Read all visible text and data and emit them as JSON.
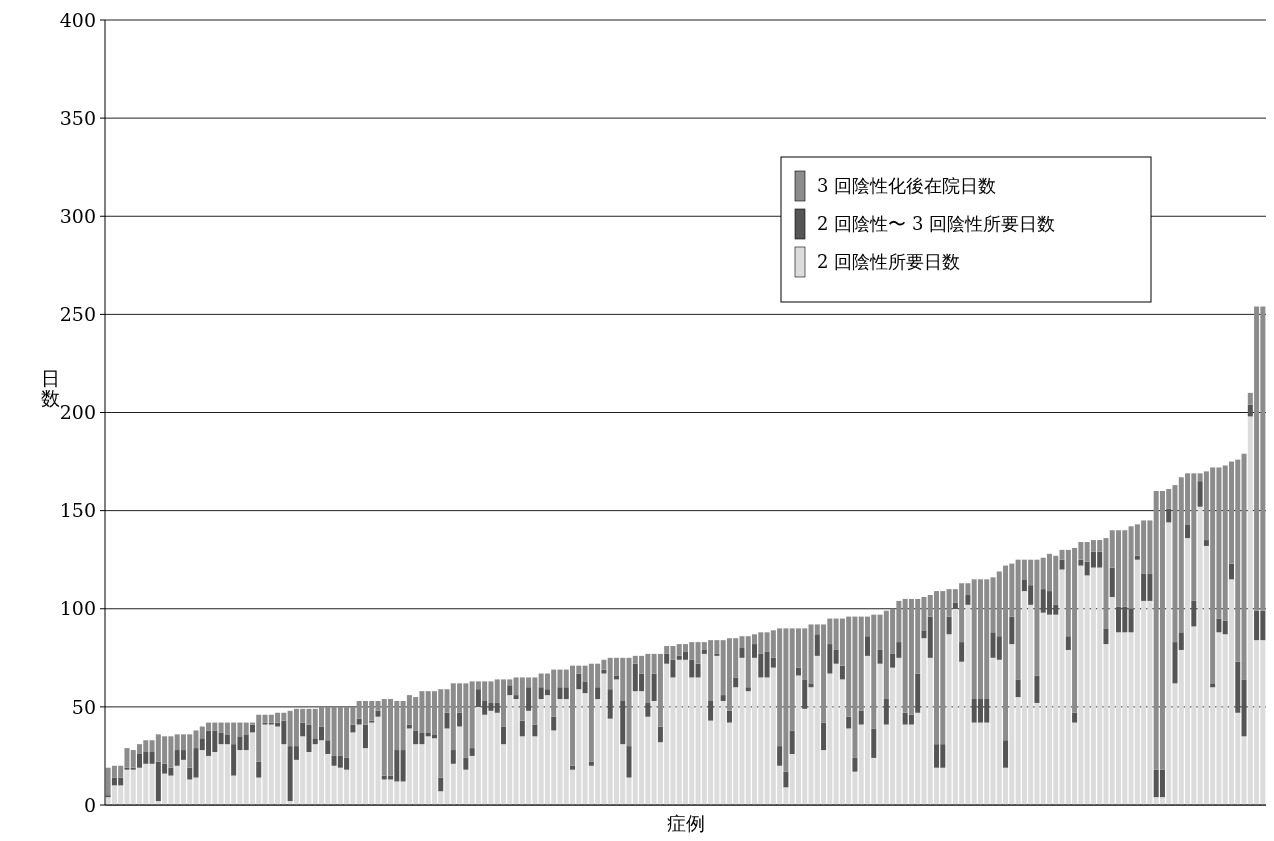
{
  "chart_data": {
    "type": "bar",
    "stacked": true,
    "xlabel": "症例",
    "ylabel": "日数",
    "categories": [
      null,
      null,
      null,
      null,
      null,
      null,
      null,
      null,
      null,
      null,
      null,
      null,
      null,
      null,
      null,
      null,
      null,
      null,
      null,
      null,
      null,
      null,
      null,
      null,
      null,
      null,
      null,
      null,
      null,
      null,
      null,
      null,
      null,
      null,
      null,
      null,
      null,
      null,
      null,
      null,
      null,
      null,
      null,
      null,
      null,
      null,
      null,
      null,
      null,
      null,
      null,
      null,
      null,
      null,
      null,
      null,
      null,
      null,
      null,
      null,
      null,
      null,
      null,
      null,
      null,
      null,
      null,
      null,
      null,
      null,
      null,
      null,
      null,
      null,
      null,
      null,
      null,
      null,
      null,
      null,
      null,
      null,
      null,
      null,
      null,
      null,
      null,
      null,
      null,
      null,
      null,
      null,
      null,
      null,
      null,
      null,
      null,
      null,
      null,
      null,
      null,
      null,
      null,
      null,
      null,
      null,
      null,
      null,
      null,
      null,
      null,
      null,
      null,
      null,
      null,
      null,
      null,
      null,
      null,
      null,
      null,
      null,
      null,
      null,
      null,
      null,
      null,
      null,
      null,
      null,
      null,
      null,
      null,
      null,
      null,
      null,
      null,
      null,
      null,
      null,
      null,
      null,
      null,
      null,
      null,
      null,
      null,
      null,
      null,
      null,
      null,
      null,
      null,
      null,
      null,
      null,
      null,
      null,
      null,
      null,
      null,
      null,
      null,
      null,
      null,
      null,
      null,
      null,
      null,
      null,
      null,
      null,
      null,
      null,
      null,
      null,
      null,
      null,
      null,
      null,
      null,
      null,
      null,
      null,
      null
    ],
    "series": [
      {
        "name": "2 回陰性所要日数",
        "color": "#dcdcdc",
        "values": [
          4,
          10,
          10,
          18,
          18,
          19,
          21,
          21,
          2,
          16,
          15,
          20,
          23,
          13,
          14,
          28,
          25,
          27,
          31,
          31,
          15,
          28,
          28,
          37,
          14,
          41,
          41,
          40,
          31,
          2,
          23,
          35,
          27,
          31,
          33,
          26,
          20,
          19,
          18,
          37,
          41,
          29,
          42,
          45,
          13,
          13,
          12,
          12,
          39,
          31,
          31,
          35,
          34,
          7,
          39,
          21,
          40,
          18,
          25,
          50,
          46,
          48,
          47,
          31,
          56,
          54,
          35,
          48,
          35,
          54,
          56,
          38,
          54,
          54,
          18,
          59,
          57,
          20,
          54,
          67,
          44,
          64,
          31,
          14,
          58,
          58,
          45,
          53,
          32,
          72,
          65,
          74,
          74,
          65,
          65,
          77,
          43,
          76,
          53,
          42,
          60,
          75,
          58,
          75,
          65,
          65,
          70,
          20,
          9,
          26,
          66,
          49,
          60,
          76,
          28,
          67,
          72,
          64,
          39,
          17,
          41,
          76,
          24,
          72,
          41,
          70,
          75,
          41,
          41,
          47,
          85,
          75,
          19,
          19,
          87,
          100,
          73,
          102,
          42,
          42,
          42,
          75,
          74,
          19,
          82,
          55,
          109,
          102,
          52,
          98,
          97,
          97,
          120,
          79,
          42,
          122,
          117,
          121,
          121,
          82,
          106,
          88,
          88,
          88,
          125,
          104,
          104,
          4,
          4,
          144,
          62,
          79,
          136,
          91,
          152,
          132,
          60,
          88,
          87,
          115,
          47,
          35,
          198,
          84,
          84
        ]
      },
      {
        "name": "2 回陰性〜 3 回陰性所要日数",
        "color": "#555555",
        "values": [
          1,
          4,
          4,
          1,
          1,
          7,
          6,
          6,
          20,
          5,
          4,
          8,
          5,
          6,
          15,
          6,
          13,
          11,
          6,
          5,
          16,
          7,
          8,
          4,
          8,
          1,
          1,
          2,
          12,
          28,
          7,
          7,
          14,
          3,
          7,
          7,
          5,
          6,
          6,
          4,
          3,
          12,
          1,
          3,
          2,
          2,
          16,
          16,
          2,
          7,
          6,
          2,
          2,
          7,
          8,
          7,
          7,
          6,
          4,
          9,
          7,
          4,
          5,
          9,
          5,
          2,
          8,
          12,
          6,
          6,
          3,
          7,
          6,
          6,
          2,
          8,
          6,
          2,
          6,
          2,
          15,
          2,
          22,
          16,
          14,
          9,
          7,
          14,
          8,
          5,
          9,
          2,
          4,
          9,
          7,
          2,
          10,
          1,
          3,
          6,
          5,
          5,
          2,
          7,
          12,
          13,
          5,
          10,
          8,
          12,
          4,
          15,
          2,
          11,
          14,
          15,
          7,
          7,
          6,
          7,
          7,
          10,
          15,
          7,
          13,
          7,
          8,
          6,
          5,
          20,
          4,
          21,
          12,
          12,
          9,
          3,
          10,
          5,
          12,
          12,
          12,
          13,
          12,
          14,
          14,
          9,
          6,
          10,
          14,
          12,
          12,
          5,
          5,
          7,
          5,
          3,
          7,
          8,
          8,
          8,
          15,
          13,
          13,
          12,
          2,
          14,
          14,
          14,
          14,
          7,
          21,
          9,
          7,
          13,
          13,
          3,
          2,
          7,
          7,
          8,
          26,
          29,
          6,
          15,
          15
        ]
      },
      {
        "name": "3 回陰性化後在院日数",
        "color": "#8c8c8c",
        "values": [
          14,
          6,
          6,
          10,
          9,
          5,
          6,
          6,
          14,
          14,
          16,
          8,
          8,
          17,
          9,
          6,
          4,
          4,
          5,
          6,
          11,
          7,
          6,
          1,
          24,
          4,
          4,
          5,
          4,
          18,
          19,
          7,
          8,
          15,
          10,
          17,
          25,
          25,
          26,
          9,
          9,
          12,
          10,
          5,
          39,
          39,
          25,
          25,
          15,
          17,
          21,
          21,
          22,
          45,
          12,
          34,
          15,
          38,
          34,
          4,
          10,
          11,
          12,
          24,
          3,
          9,
          22,
          5,
          24,
          7,
          8,
          24,
          9,
          9,
          51,
          4,
          8,
          50,
          12,
          5,
          16,
          9,
          22,
          45,
          4,
          9,
          25,
          10,
          37,
          4,
          7,
          6,
          4,
          9,
          11,
          4,
          31,
          7,
          28,
          37,
          20,
          6,
          26,
          5,
          11,
          10,
          14,
          60,
          73,
          52,
          20,
          26,
          30,
          5,
          50,
          13,
          16,
          24,
          51,
          72,
          48,
          10,
          58,
          18,
          45,
          23,
          21,
          58,
          59,
          38,
          17,
          11,
          78,
          78,
          14,
          7,
          30,
          6,
          61,
          61,
          61,
          28,
          33,
          89,
          27,
          61,
          10,
          13,
          59,
          16,
          19,
          25,
          5,
          44,
          84,
          9,
          10,
          6,
          6,
          46,
          19,
          39,
          39,
          42,
          16,
          27,
          27,
          142,
          142,
          10,
          80,
          79,
          26,
          65,
          4,
          35,
          110,
          77,
          79,
          52,
          103,
          115,
          6,
          155,
          155
        ]
      }
    ],
    "ylim": [
      0,
      400
    ],
    "yticks": [
      0,
      50,
      100,
      150,
      200,
      250,
      300,
      350,
      400
    ],
    "grid": "y",
    "legend": "top right",
    "tick_labels": "y"
  }
}
